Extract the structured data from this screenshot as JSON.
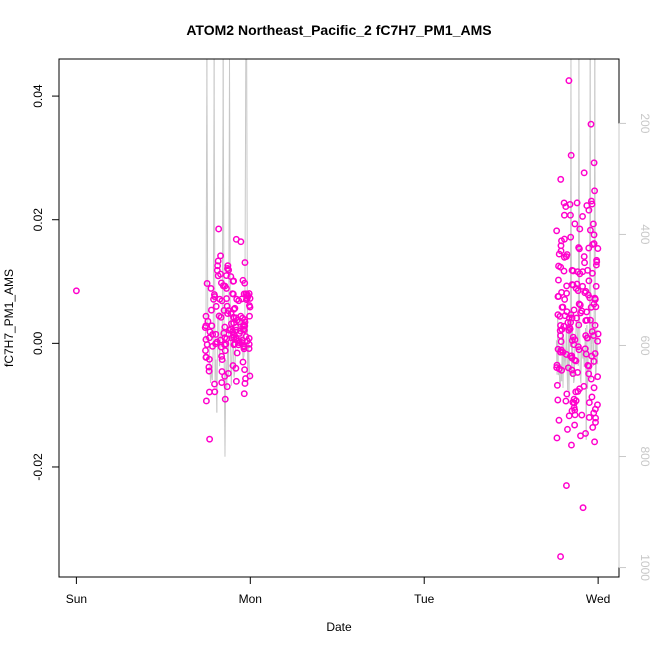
{
  "chart_data": {
    "type": "scatter",
    "title": "ATOM2 Northeast_Pacific_2 fC7H7_PM1_AMS",
    "xlabel": "Date",
    "ylabel": "fC7H7_PM1_AMS",
    "x_ticks": [
      "Sun",
      "Mon",
      "Tue",
      "Wed"
    ],
    "x_unit": "days since Sunday 00:00",
    "xlim": [
      -0.1,
      3.12
    ],
    "ylim": [
      -0.0378,
      0.046
    ],
    "y_ticks": [
      -0.02,
      0.0,
      0.02,
      0.04
    ],
    "y_tick_labels": [
      "-0.02",
      "0.00",
      "0.02",
      "0.04"
    ],
    "right_axis": {
      "ticks": [
        200,
        400,
        600,
        800,
        1000
      ],
      "range": [
        1017,
        84
      ],
      "color": "#c8c8c8",
      "note": "secondary axis (altitude-like), values increase downward"
    },
    "marker_color": "#ff00cc",
    "line_color": "#c8c8c8",
    "clusters": [
      {
        "x_start": -0.005,
        "x_end": 0.005,
        "y_min": 0.0085,
        "y_max": 0.0085,
        "n": 1,
        "seed": 11
      },
      {
        "x_start": 0.74,
        "x_end": 1.0,
        "y_min": -0.0155,
        "y_max": 0.0185,
        "y_center": 0.003,
        "n": 150,
        "seed": 37
      },
      {
        "x_start": 2.76,
        "x_end": 3.0,
        "y_min": -0.0345,
        "y_max": 0.0425,
        "y_center": 0.004,
        "n": 190,
        "seed": 73
      }
    ]
  }
}
